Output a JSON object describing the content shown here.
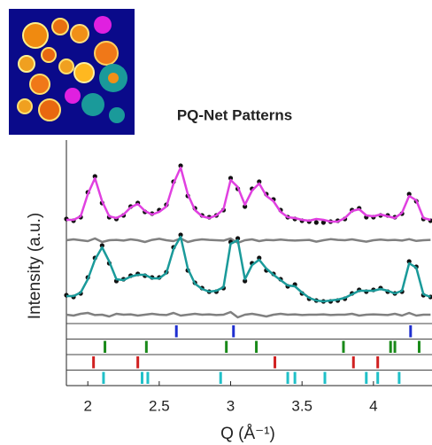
{
  "chart_data": {
    "type": "line",
    "title": "PQ-Net Patterns",
    "y_label": "Intensity (a.u.)",
    "x_label": "Q (Å⁻¹)",
    "x": [
      1.85,
      1.9,
      1.95,
      2.0,
      2.05,
      2.1,
      2.15,
      2.2,
      2.25,
      2.3,
      2.35,
      2.4,
      2.45,
      2.5,
      2.55,
      2.6,
      2.65,
      2.7,
      2.75,
      2.8,
      2.85,
      2.9,
      2.95,
      3.0,
      3.05,
      3.1,
      3.15,
      3.2,
      3.25,
      3.3,
      3.35,
      3.4,
      3.45,
      3.5,
      3.55,
      3.6,
      3.65,
      3.7,
      3.75,
      3.8,
      3.85,
      3.9,
      3.95,
      4.0,
      4.05,
      4.1,
      4.15,
      4.2,
      4.25,
      4.3,
      4.35,
      4.4
    ],
    "xlim": [
      1.85,
      4.41
    ],
    "xticks": [
      2,
      2.5,
      3,
      3.5,
      4
    ],
    "ylim": [
      0,
      10
    ],
    "series": [
      {
        "style": "markers",
        "color": "#111111",
        "values": [
          5.9,
          5.8,
          6.0,
          7.4,
          8.3,
          6.8,
          6.0,
          5.9,
          6.1,
          6.6,
          6.8,
          6.3,
          6.2,
          6.4,
          6.7,
          8.0,
          8.9,
          7.2,
          6.5,
          6.1,
          6.0,
          6.1,
          6.4,
          8.2,
          7.6,
          6.6,
          7.6,
          8.0,
          7.3,
          7.0,
          6.4,
          6.0,
          5.9,
          5.8,
          5.75,
          5.7,
          5.7,
          5.75,
          5.8,
          5.9,
          6.4,
          6.5,
          6.0,
          6.0,
          6.1,
          6.1,
          6.0,
          6.2,
          7.3,
          6.9,
          5.9,
          5.8
        ]
      },
      {
        "style": "line",
        "color": "#e040e0",
        "values": [
          5.85,
          5.85,
          6.05,
          7.3,
          8.2,
          6.9,
          6.05,
          5.95,
          6.15,
          6.55,
          6.75,
          6.35,
          6.15,
          6.3,
          6.6,
          7.9,
          8.8,
          7.3,
          6.4,
          6.05,
          5.95,
          6.1,
          6.45,
          8.1,
          7.7,
          6.7,
          7.5,
          7.9,
          7.2,
          6.9,
          6.3,
          6.0,
          5.95,
          5.85,
          5.8,
          5.9,
          5.85,
          5.75,
          5.75,
          5.95,
          6.35,
          6.45,
          6.1,
          6.05,
          6.15,
          6.05,
          5.95,
          6.25,
          7.2,
          6.95,
          5.95,
          5.85
        ]
      },
      {
        "style": "line",
        "color": "#808080",
        "values": [
          4.7,
          4.75,
          4.7,
          4.65,
          4.8,
          4.6,
          4.7,
          4.72,
          4.68,
          4.75,
          4.7,
          4.6,
          4.72,
          4.78,
          4.7,
          4.65,
          4.8,
          4.6,
          4.7,
          4.75,
          4.72,
          4.7,
          4.68,
          4.8,
          4.55,
          4.7,
          4.75,
          4.65,
          4.72,
          4.7,
          4.74,
          4.7,
          4.68,
          4.7,
          4.72,
          4.62,
          4.7,
          4.76,
          4.72,
          4.7,
          4.75,
          4.68,
          4.62,
          4.7,
          4.74,
          4.7,
          4.72,
          4.68,
          4.76,
          4.66,
          4.7,
          4.72
        ]
      },
      {
        "style": "markers",
        "color": "#111111",
        "values": [
          1.6,
          1.5,
          1.7,
          2.6,
          3.7,
          4.4,
          3.4,
          2.4,
          2.5,
          2.7,
          2.8,
          2.7,
          2.6,
          2.6,
          2.9,
          4.3,
          5.0,
          3.0,
          2.3,
          2.0,
          1.8,
          1.8,
          2.0,
          4.6,
          4.8,
          2.4,
          3.4,
          3.7,
          3.0,
          2.8,
          2.5,
          2.1,
          2.2,
          1.7,
          1.4,
          1.3,
          1.25,
          1.25,
          1.3,
          1.4,
          1.7,
          1.9,
          1.8,
          1.9,
          2.0,
          1.8,
          1.7,
          1.8,
          3.5,
          3.2,
          1.6,
          1.5
        ]
      },
      {
        "style": "line",
        "color": "#1a9a9a",
        "values": [
          1.55,
          1.55,
          1.75,
          2.5,
          3.6,
          4.3,
          3.5,
          2.5,
          2.45,
          2.65,
          2.75,
          2.75,
          2.55,
          2.55,
          2.85,
          4.2,
          4.9,
          3.1,
          2.25,
          1.95,
          1.8,
          1.85,
          2.05,
          4.5,
          4.7,
          2.5,
          3.3,
          3.6,
          3.1,
          2.75,
          2.45,
          2.15,
          2.1,
          1.75,
          1.45,
          1.3,
          1.25,
          1.3,
          1.35,
          1.45,
          1.65,
          1.85,
          1.85,
          1.85,
          1.95,
          1.85,
          1.7,
          1.85,
          3.4,
          3.15,
          1.65,
          1.5
        ]
      },
      {
        "style": "line",
        "color": "#808080",
        "values": [
          0.5,
          0.45,
          0.55,
          0.6,
          0.48,
          0.5,
          0.4,
          0.55,
          0.5,
          0.52,
          0.45,
          0.5,
          0.55,
          0.5,
          0.48,
          0.6,
          0.45,
          0.5,
          0.55,
          0.5,
          0.52,
          0.48,
          0.5,
          0.65,
          0.35,
          0.5,
          0.55,
          0.48,
          0.4,
          0.5,
          0.55,
          0.5,
          0.52,
          0.48,
          0.5,
          0.5,
          0.52,
          0.48,
          0.5,
          0.5,
          0.55,
          0.45,
          0.5,
          0.52,
          0.5,
          0.48,
          0.55,
          0.45,
          0.6,
          0.45,
          0.5,
          0.5
        ]
      }
    ],
    "reflections": [
      {
        "color": "#1f2fd0",
        "positions": [
          2.62,
          3.02,
          4.26
        ]
      },
      {
        "color": "#1a8a1a",
        "positions": [
          2.12,
          2.41,
          2.97,
          3.18,
          3.79,
          4.12,
          4.15,
          4.32
        ]
      },
      {
        "color": "#d02020",
        "positions": [
          2.04,
          2.35,
          3.31,
          3.86,
          4.03
        ]
      },
      {
        "color": "#20c0c8",
        "positions": [
          2.11,
          2.38,
          2.42,
          2.93,
          3.4,
          3.45,
          3.66,
          3.95,
          4.03,
          4.18
        ]
      }
    ]
  }
}
